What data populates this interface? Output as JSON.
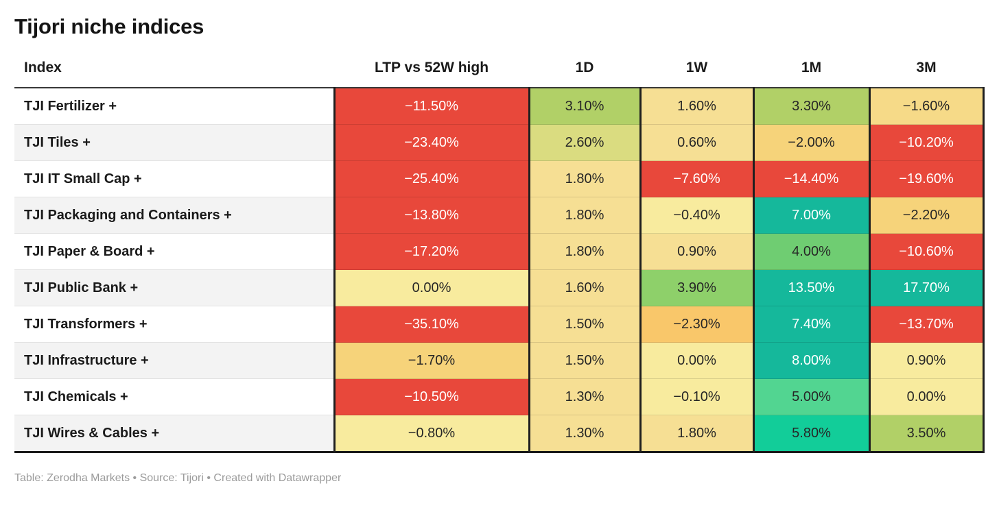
{
  "title": "Tijori niche indices",
  "footer": "Table: Zerodha Markets • Source: Tijori • Created with Datawrapper",
  "palette": {
    "red": {
      "bg": "#e8483b",
      "fg": "#ffffff"
    },
    "orange": {
      "bg": "#f9c76a",
      "fg": "#262626"
    },
    "amber": {
      "bg": "#f6d37a",
      "fg": "#262626"
    },
    "amberlight": {
      "bg": "#f6da88",
      "fg": "#262626"
    },
    "wheat": {
      "bg": "#f6df94",
      "fg": "#262626"
    },
    "pale": {
      "bg": "#f8eb9e",
      "fg": "#262626"
    },
    "palegreen": {
      "bg": "#dadc80",
      "fg": "#262626"
    },
    "yellowgreen": {
      "bg": "#b1d067",
      "fg": "#262626"
    },
    "green": {
      "bg": "#8ed06a",
      "fg": "#262626"
    },
    "medgreen": {
      "bg": "#6fcd72",
      "fg": "#262626"
    },
    "emeraldlight": {
      "bg": "#52d591",
      "fg": "#262626"
    },
    "emerald": {
      "bg": "#12cd99",
      "fg": "#262626"
    },
    "teal": {
      "bg": "#15b89b",
      "fg": "#ffffff"
    }
  },
  "table": {
    "header": [
      "Index",
      "LTP vs 52W high",
      "1D",
      "1W",
      "1M",
      "3M"
    ],
    "rows": [
      {
        "label": "TJI Fertilizer +",
        "cells": [
          {
            "text": "−11.50%",
            "style": "red"
          },
          {
            "text": "3.10%",
            "style": "yellowgreen"
          },
          {
            "text": "1.60%",
            "style": "wheat"
          },
          {
            "text": "3.30%",
            "style": "yellowgreen"
          },
          {
            "text": "−1.60%",
            "style": "amberlight"
          }
        ]
      },
      {
        "label": "TJI Tiles +",
        "cells": [
          {
            "text": "−23.40%",
            "style": "red"
          },
          {
            "text": "2.60%",
            "style": "palegreen"
          },
          {
            "text": "0.60%",
            "style": "wheat"
          },
          {
            "text": "−2.00%",
            "style": "amber"
          },
          {
            "text": "−10.20%",
            "style": "red"
          }
        ]
      },
      {
        "label": "TJI IT Small Cap +",
        "cells": [
          {
            "text": "−25.40%",
            "style": "red"
          },
          {
            "text": "1.80%",
            "style": "wheat"
          },
          {
            "text": "−7.60%",
            "style": "red"
          },
          {
            "text": "−14.40%",
            "style": "red"
          },
          {
            "text": "−19.60%",
            "style": "red"
          }
        ]
      },
      {
        "label": "TJI Packaging and Containers +",
        "cells": [
          {
            "text": "−13.80%",
            "style": "red"
          },
          {
            "text": "1.80%",
            "style": "wheat"
          },
          {
            "text": "−0.40%",
            "style": "pale"
          },
          {
            "text": "7.00%",
            "style": "teal"
          },
          {
            "text": "−2.20%",
            "style": "amber"
          }
        ]
      },
      {
        "label": "TJI Paper & Board +",
        "cells": [
          {
            "text": "−17.20%",
            "style": "red"
          },
          {
            "text": "1.80%",
            "style": "wheat"
          },
          {
            "text": "0.90%",
            "style": "wheat"
          },
          {
            "text": "4.00%",
            "style": "medgreen"
          },
          {
            "text": "−10.60%",
            "style": "red"
          }
        ]
      },
      {
        "label": "TJI Public Bank +",
        "cells": [
          {
            "text": "0.00%",
            "style": "pale"
          },
          {
            "text": "1.60%",
            "style": "wheat"
          },
          {
            "text": "3.90%",
            "style": "green"
          },
          {
            "text": "13.50%",
            "style": "teal"
          },
          {
            "text": "17.70%",
            "style": "teal"
          }
        ]
      },
      {
        "label": "TJI Transformers +",
        "cells": [
          {
            "text": "−35.10%",
            "style": "red"
          },
          {
            "text": "1.50%",
            "style": "wheat"
          },
          {
            "text": "−2.30%",
            "style": "orange"
          },
          {
            "text": "7.40%",
            "style": "teal"
          },
          {
            "text": "−13.70%",
            "style": "red"
          }
        ]
      },
      {
        "label": "TJI Infrastructure +",
        "cells": [
          {
            "text": "−1.70%",
            "style": "amber"
          },
          {
            "text": "1.50%",
            "style": "wheat"
          },
          {
            "text": "0.00%",
            "style": "pale"
          },
          {
            "text": "8.00%",
            "style": "teal"
          },
          {
            "text": "0.90%",
            "style": "pale"
          }
        ]
      },
      {
        "label": "TJI Chemicals +",
        "cells": [
          {
            "text": "−10.50%",
            "style": "red"
          },
          {
            "text": "1.30%",
            "style": "wheat"
          },
          {
            "text": "−0.10%",
            "style": "pale"
          },
          {
            "text": "5.00%",
            "style": "emeraldlight"
          },
          {
            "text": "0.00%",
            "style": "pale"
          }
        ]
      },
      {
        "label": "TJI Wires & Cables +",
        "cells": [
          {
            "text": "−0.80%",
            "style": "pale"
          },
          {
            "text": "1.30%",
            "style": "wheat"
          },
          {
            "text": "1.80%",
            "style": "wheat"
          },
          {
            "text": "5.80%",
            "style": "emerald"
          },
          {
            "text": "3.50%",
            "style": "yellowgreen"
          }
        ]
      }
    ]
  },
  "chart_data": {
    "type": "table",
    "title": "Tijori niche indices",
    "columns": [
      "Index",
      "LTP vs 52W high",
      "1D",
      "1W",
      "1M",
      "3M"
    ],
    "rows": [
      [
        "TJI Fertilizer +",
        -11.5,
        3.1,
        1.6,
        3.3,
        -1.6
      ],
      [
        "TJI Tiles +",
        -23.4,
        2.6,
        0.6,
        -2.0,
        -10.2
      ],
      [
        "TJI IT Small Cap +",
        -25.4,
        1.8,
        -7.6,
        -14.4,
        -19.6
      ],
      [
        "TJI Packaging and Containers +",
        -13.8,
        1.8,
        -0.4,
        7.0,
        -2.2
      ],
      [
        "TJI Paper & Board +",
        -17.2,
        1.8,
        0.9,
        4.0,
        -10.6
      ],
      [
        "TJI Public Bank +",
        0.0,
        1.6,
        3.9,
        13.5,
        17.7
      ],
      [
        "TJI Transformers +",
        -35.1,
        1.5,
        -2.3,
        7.4,
        -13.7
      ],
      [
        "TJI Infrastructure +",
        -1.7,
        1.5,
        0.0,
        8.0,
        0.9
      ],
      [
        "TJI Chemicals +",
        -10.5,
        1.3,
        -0.1,
        5.0,
        0.0
      ],
      [
        "TJI Wires & Cables +",
        -0.8,
        1.3,
        1.8,
        5.8,
        3.5
      ]
    ],
    "value_unit": "%",
    "heatmap": true,
    "color_scale": "red-yellow-green diverging, red for large negatives, teal for large positives"
  }
}
